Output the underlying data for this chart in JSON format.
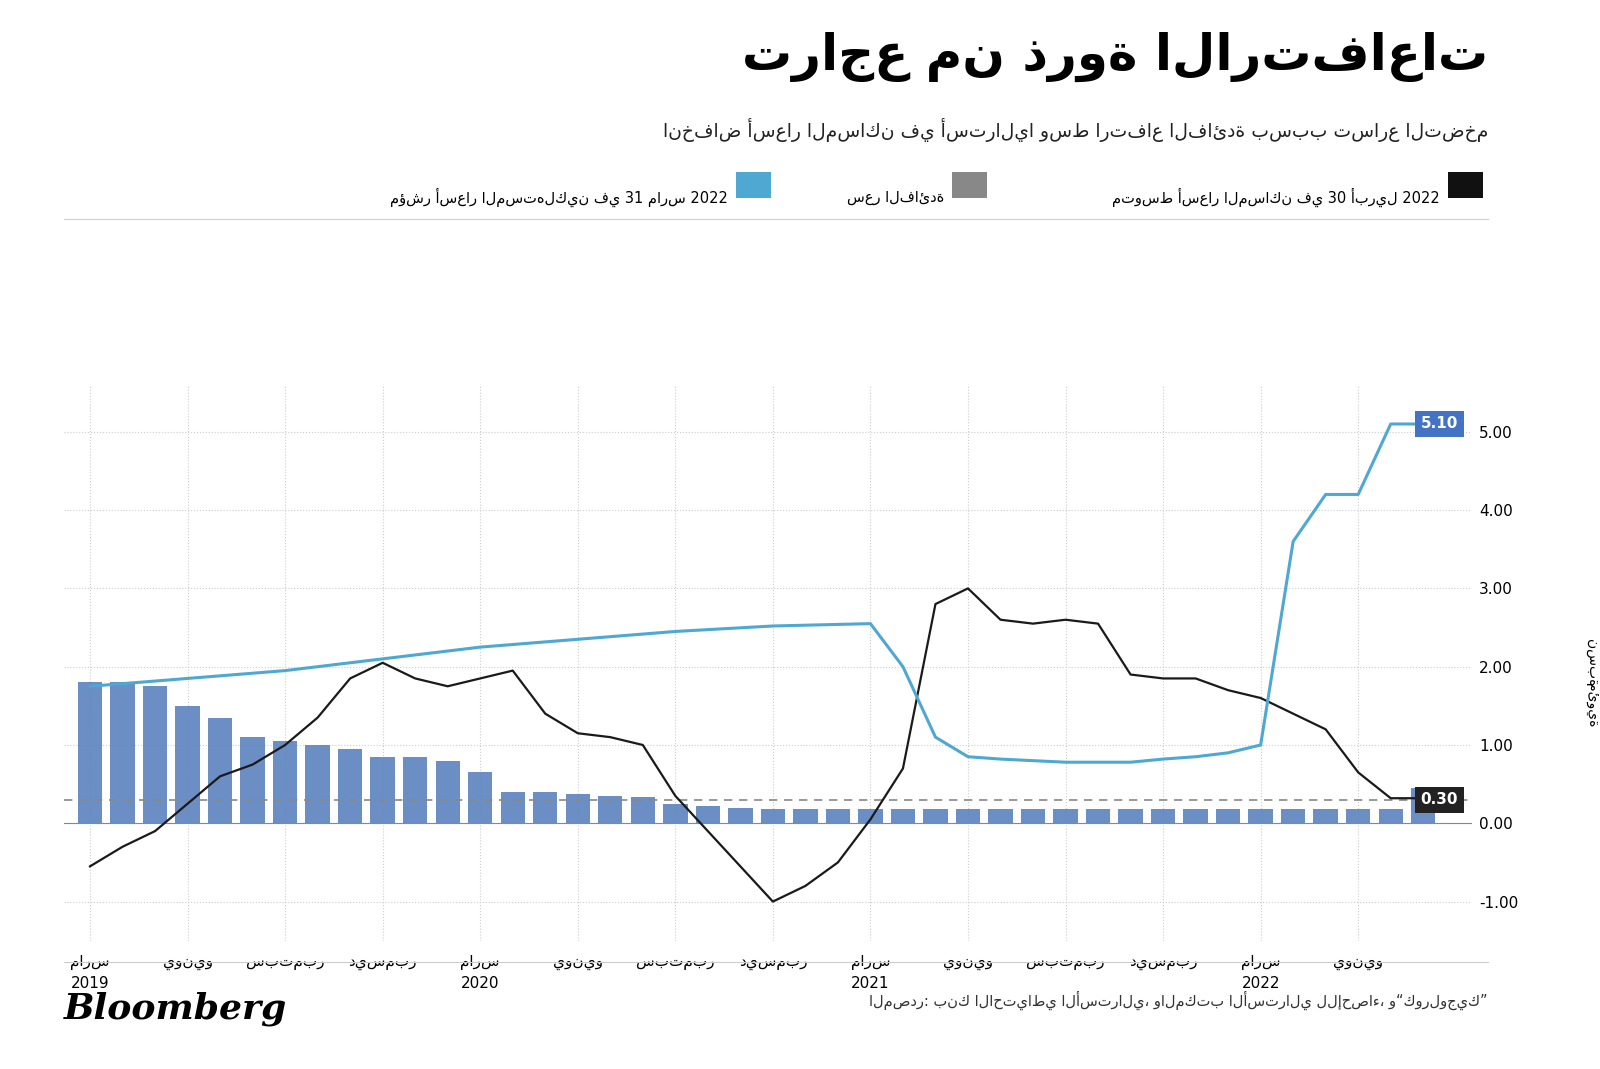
{
  "title": "تراجع من ذروة الارتفاعات",
  "subtitle": "انخفاض أسعار المساكن في أستراليا وسط ارتفاع الفائدة بسبب تسارع التضخم",
  "legend1": "متوسط أسعار المساكن في 30 أبريل 2022",
  "legend2": "سعر الفائدة",
  "legend3": "مؤشر أسعار المستهلكين في 31 مارس 2022",
  "source": "المصدر: بنك الاحتياطي الأسترالي، والمكتب الأسترالي للإحصاء، و“كورلوجيك”",
  "bloomberg": "Bloomberg",
  "ylim_bottom": -1.5,
  "ylim_top": 5.6,
  "yticks": [
    -1.0,
    0.0,
    1.0,
    2.0,
    3.0,
    4.0,
    5.0
  ],
  "bar_color": "#5B82BE",
  "line_black_color": "#1A1A1A",
  "line_blue_color": "#4EA8D2",
  "dashed_color": "#888888",
  "dashed_value": 0.3,
  "blue_end_value": 5.1,
  "bg_color": "#FFFFFF",
  "right_label_line1": "نسبة",
  "right_label_line2": "مئوية",
  "x_tick_labels": [
    "مارس",
    "يونيو",
    "سبتمبر",
    "ديسمبر",
    "مارس",
    "يونيو",
    "سبتمبر",
    "ديسمبر",
    "مارس",
    "يونيو",
    "سبتمبر",
    "ديسمبر",
    "مارس",
    "يونيو"
  ],
  "x_year_labels": [
    "2019",
    "",
    "",
    "",
    "2020",
    "",
    "",
    "",
    "2021",
    "",
    "",
    "",
    "2022",
    ""
  ],
  "x_tick_positions": [
    0,
    3,
    6,
    9,
    12,
    15,
    18,
    21,
    24,
    27,
    30,
    33,
    36,
    39
  ],
  "bars_x": [
    0,
    1,
    2,
    3,
    4,
    5,
    6,
    7,
    8,
    9,
    10,
    11,
    12,
    13,
    14,
    15,
    16,
    17,
    18,
    19,
    20,
    21,
    22,
    23,
    24,
    25,
    26,
    27,
    28,
    29,
    30,
    31,
    32,
    33,
    34,
    35,
    36,
    37,
    38,
    39,
    40,
    41
  ],
  "bars_h": [
    1.8,
    1.8,
    1.75,
    1.5,
    1.35,
    1.1,
    1.05,
    1.0,
    0.95,
    0.85,
    0.85,
    0.8,
    0.65,
    0.4,
    0.4,
    0.38,
    0.35,
    0.33,
    0.25,
    0.22,
    0.2,
    0.18,
    0.18,
    0.18,
    0.18,
    0.18,
    0.18,
    0.18,
    0.18,
    0.18,
    0.18,
    0.18,
    0.18,
    0.18,
    0.18,
    0.18,
    0.18,
    0.18,
    0.18,
    0.18,
    0.18,
    0.45
  ],
  "black_line_x": [
    0,
    1,
    2,
    3,
    4,
    5,
    6,
    7,
    8,
    9,
    10,
    11,
    12,
    13,
    14,
    15,
    16,
    17,
    18,
    19,
    20,
    21,
    22,
    23,
    24,
    25,
    26,
    27,
    28,
    29,
    30,
    31,
    32,
    33,
    34,
    35,
    36,
    37,
    38,
    39,
    40,
    41
  ],
  "black_line_y": [
    -0.55,
    -0.3,
    -0.1,
    0.25,
    0.6,
    0.75,
    1.0,
    1.35,
    1.85,
    2.05,
    1.85,
    1.75,
    1.85,
    1.95,
    1.4,
    1.15,
    1.1,
    1.0,
    0.35,
    -0.1,
    -0.55,
    -1.0,
    -0.8,
    -0.5,
    0.05,
    0.7,
    2.8,
    3.0,
    2.6,
    2.55,
    2.6,
    2.55,
    1.9,
    1.85,
    1.85,
    1.7,
    1.6,
    1.4,
    1.2,
    0.65,
    0.32,
    0.32
  ],
  "blue_line_x": [
    0,
    3,
    6,
    9,
    11,
    12,
    15,
    18,
    21,
    24,
    25,
    26,
    27,
    28,
    29,
    30,
    31,
    32,
    33,
    34,
    35,
    36,
    37,
    38,
    39,
    40,
    41
  ],
  "blue_line_y": [
    1.75,
    1.85,
    1.95,
    2.1,
    2.2,
    2.25,
    2.35,
    2.45,
    2.52,
    2.55,
    2.0,
    1.1,
    0.85,
    0.82,
    0.8,
    0.78,
    0.78,
    0.78,
    0.82,
    0.85,
    0.9,
    1.0,
    3.6,
    4.2,
    4.2,
    5.1,
    5.1
  ]
}
